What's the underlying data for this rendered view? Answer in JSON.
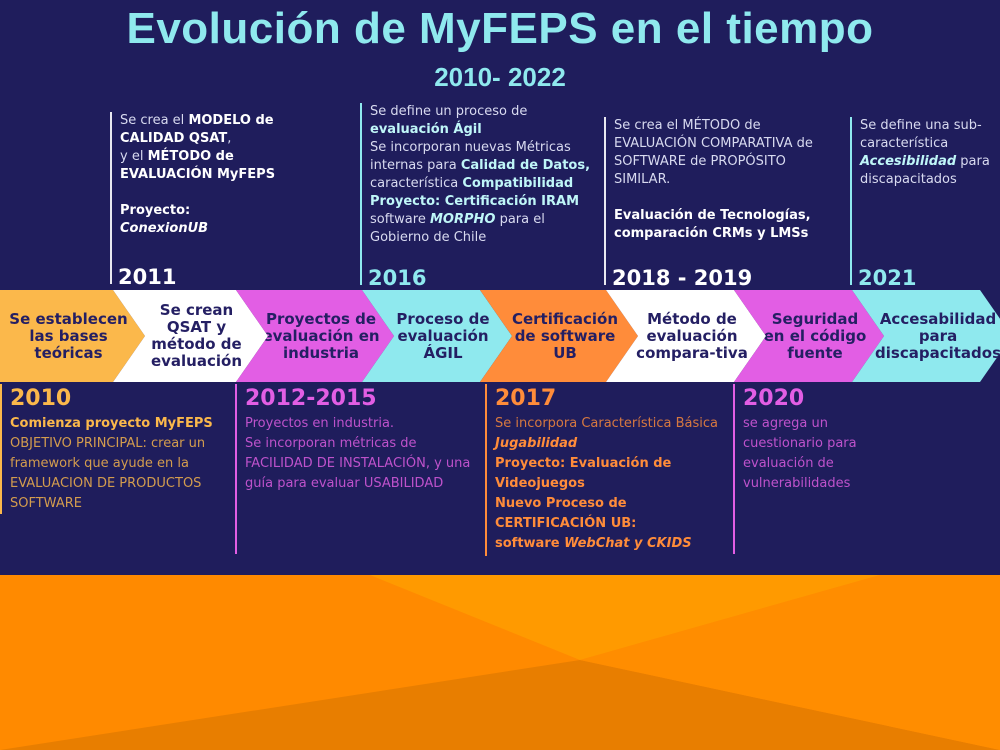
{
  "header": {
    "title": "Evolución de MyFEPS en el tiempo",
    "subtitle": "2010- 2022"
  },
  "colors": {
    "background": "#1f1d5c",
    "cyan": "#8fe9ee",
    "yellow": "#fbb84b",
    "white": "#ffffff",
    "magenta": "#e25ee4",
    "orange": "#ff8c3a",
    "dark_text": "#241f63",
    "footer_orange": "#ff8a00"
  },
  "top_events": [
    {
      "year": "2011",
      "lines": [
        {
          "t": "Se crea el "
        },
        {
          "b": "MODELO de CALIDAD QSAT"
        },
        {
          "t": ","
        },
        {
          "br": true
        },
        {
          "t": "y el "
        },
        {
          "b": "MÉTODO de EVALUACIÓN MyFEPS"
        },
        {
          "br": true
        },
        {
          "br": true
        },
        {
          "b": "Proyecto:"
        },
        {
          "br": true
        },
        {
          "bi": "ConexionUB"
        }
      ]
    },
    {
      "year": "2016",
      "lines": [
        {
          "t": "Se define un proceso de "
        },
        {
          "b": "evaluación Ágil"
        },
        {
          "br": true
        },
        {
          "t": "Se incorporan nuevas Métricas internas para "
        },
        {
          "b": "Calidad de Datos,"
        },
        {
          "t": " característica "
        },
        {
          "b": "Compatibilidad"
        },
        {
          "br": true
        },
        {
          "b": "Proyecto: Certificación IRAM"
        },
        {
          "t": " software "
        },
        {
          "bi": "MORPHO"
        },
        {
          "t": " para el Gobierno de Chile"
        }
      ]
    },
    {
      "year": "2018 - 2019",
      "lines": [
        {
          "t": "Se crea el MÉTODO de EVALUACIÓN COMPARATIVA de SOFTWARE de PROPÓSITO SIMILAR."
        },
        {
          "br": true
        },
        {
          "br": true
        },
        {
          "b": "Evaluación de Tecnologías, comparación CRMs y LMSs"
        }
      ]
    },
    {
      "year": "2021",
      "lines": [
        {
          "t": "Se define una sub-característica "
        },
        {
          "bi": "Accesibilidad"
        },
        {
          "t": " para discapacitados"
        }
      ]
    }
  ],
  "arrows": [
    {
      "label": "Se establecen las bases teóricas",
      "color": "#fbb84b"
    },
    {
      "label": "Se crean QSAT y método de evaluación",
      "color": "#ffffff"
    },
    {
      "label": "Proyectos de evaluación en industria",
      "color": "#e25ee4"
    },
    {
      "label": "Proceso de evaluación ÁGIL",
      "color": "#8fe9ee"
    },
    {
      "label": "Certificación de software UB",
      "color": "#ff8c3a"
    },
    {
      "label": "Método de evaluación compara-tiva",
      "color": "#ffffff"
    },
    {
      "label": "Seguridad en el código fuente",
      "color": "#e25ee4"
    },
    {
      "label": "Accesabilidad para discapacitados",
      "color": "#8fe9ee"
    }
  ],
  "bottom_events": [
    {
      "year": "2010",
      "color": "#fbb84b",
      "lines": [
        {
          "b": "Comienza proyecto MyFEPS"
        },
        {
          "br": true
        },
        {
          "t": "OBJETIVO PRINCIPAL: crear un framework que ayude en la EVALUACION DE PRODUCTOS SOFTWARE"
        }
      ]
    },
    {
      "year": "2012-2015",
      "color": "#e25ee4",
      "lines": [
        {
          "t": "Proyectos en industria."
        },
        {
          "br": true
        },
        {
          "t": "Se incorporan métricas de FACILIDAD DE INSTALACIÓN, y una guía para evaluar USABILIDAD"
        }
      ]
    },
    {
      "year": "2017",
      "color": "#ff8c3a",
      "lines": [
        {
          "t": "Se incorpora Característica Básica"
        },
        {
          "br": true
        },
        {
          "bi": "Jugabilidad"
        },
        {
          "br": true
        },
        {
          "b": "Proyecto: Evaluación de Videojuegos"
        },
        {
          "br": true
        },
        {
          "b": "Nuevo Proceso de CERTIFICACIÓN UB:"
        },
        {
          "br": true
        },
        {
          "b": "software "
        },
        {
          "bi": "WebChat y CKIDS"
        }
      ]
    },
    {
      "year": "2020",
      "color": "#e25ee4",
      "lines": [
        {
          "t": "se agrega un cuestionario para evaluación de vulnerabilidades"
        }
      ]
    }
  ]
}
